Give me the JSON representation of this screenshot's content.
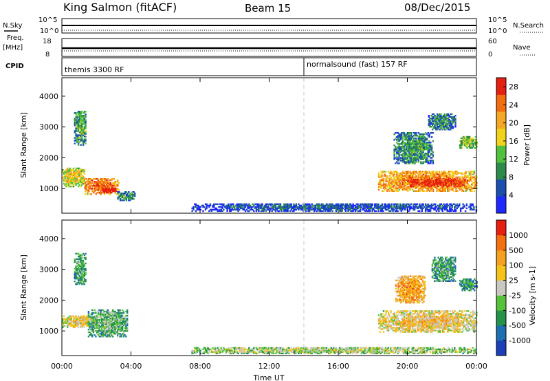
{
  "header": {
    "station": "King Salmon (fitACF)",
    "beam": "Beam 15",
    "date": "08/Dec/2015"
  },
  "top_panels": {
    "nsky_label": "N.Sky",
    "nsky_ticks": [
      "10^5",
      "10^0"
    ],
    "nsearch_label": "N.Search",
    "freq_label": "Freq.",
    "freq_unit": "[MHz]",
    "freq_ticks": [
      "18",
      "8"
    ],
    "nave_label": "Nave",
    "nave_ticks": [
      "60",
      "0"
    ],
    "cpid_label": "CPID",
    "cpid_segments": [
      "themis 3300 RF",
      "normalsound (fast) 157 RF"
    ]
  },
  "chart_data": [
    {
      "type": "heatmap",
      "title": "",
      "xlabel": "Time UT",
      "ylabel": "Slant Range [km]",
      "x_ticks": [
        "00:00",
        "04:00",
        "08:00",
        "12:00",
        "16:00",
        "20:00",
        "00:00"
      ],
      "y_ticks": [
        1000,
        2000,
        3000,
        4000
      ],
      "ylim": [
        200,
        4600
      ],
      "colorbar": {
        "label": "Power [dB]",
        "ticks": [
          4,
          8,
          12,
          16,
          20,
          24,
          28
        ],
        "range": [
          0,
          30
        ],
        "colors": [
          "#1e28ff",
          "#1a4fb0",
          "#2e8a4a",
          "#52c23c",
          "#f2d21a",
          "#f5a623",
          "#f36d10",
          "#e52010"
        ]
      },
      "blobs": [
        {
          "t": [
            0.0,
            1.3
          ],
          "r": [
            1050,
            1650
          ],
          "level": 0.45
        },
        {
          "t": [
            1.3,
            3.3
          ],
          "r": [
            800,
            1300
          ],
          "level": 0.65
        },
        {
          "t": [
            2.2,
            3.2
          ],
          "r": [
            850,
            1000
          ],
          "level": 0.9
        },
        {
          "t": [
            0.7,
            1.4
          ],
          "r": [
            2400,
            3500
          ],
          "level": 0.25
        },
        {
          "t": [
            3.2,
            4.2
          ],
          "r": [
            600,
            900
          ],
          "level": 0.2
        },
        {
          "t": [
            7.5,
            24.0
          ],
          "r": [
            250,
            500
          ],
          "level": 0.05
        },
        {
          "t": [
            18.3,
            24.0
          ],
          "r": [
            900,
            1550
          ],
          "level": 0.6
        },
        {
          "t": [
            20.0,
            23.5
          ],
          "r": [
            1050,
            1300
          ],
          "level": 0.85
        },
        {
          "t": [
            19.2,
            21.5
          ],
          "r": [
            1800,
            2800
          ],
          "level": 0.2
        },
        {
          "t": [
            21.2,
            22.8
          ],
          "r": [
            2900,
            3400
          ],
          "level": 0.15
        },
        {
          "t": [
            23.0,
            24.0
          ],
          "r": [
            2300,
            2700
          ],
          "level": 0.35
        }
      ]
    },
    {
      "type": "heatmap",
      "title": "",
      "xlabel": "Time UT",
      "ylabel": "Slant Range [km]",
      "x_ticks": [
        "00:00",
        "04:00",
        "08:00",
        "12:00",
        "16:00",
        "20:00",
        "00:00"
      ],
      "y_ticks": [
        1000,
        2000,
        3000,
        4000
      ],
      "ylim": [
        200,
        4600
      ],
      "colorbar": {
        "label": "Velocity [m s-1]",
        "ticks": [
          1000,
          500,
          100,
          25,
          -25,
          -100,
          -500,
          -1000
        ],
        "colors": [
          "#1c3fb8",
          "#1d6fb0",
          "#23924a",
          "#56c23a",
          "#c8c8c0",
          "#f5c21a",
          "#f5a020",
          "#f37010",
          "#e52010"
        ]
      },
      "blobs": [
        {
          "t": [
            0.0,
            2.0
          ],
          "r": [
            1100,
            1500
          ],
          "level": 0.45
        },
        {
          "t": [
            1.5,
            3.8
          ],
          "r": [
            800,
            1700
          ],
          "level": 0.25
        },
        {
          "t": [
            0.7,
            1.4
          ],
          "r": [
            2500,
            3500
          ],
          "level": 0.2
        },
        {
          "t": [
            7.5,
            24.0
          ],
          "r": [
            250,
            450
          ],
          "level": 0.35
        },
        {
          "t": [
            18.3,
            24.0
          ],
          "r": [
            950,
            1650
          ],
          "level": 0.48
        },
        {
          "t": [
            19.3,
            21.0
          ],
          "r": [
            1900,
            2800
          ],
          "level": 0.6
        },
        {
          "t": [
            21.4,
            22.8
          ],
          "r": [
            2600,
            3400
          ],
          "level": 0.2
        },
        {
          "t": [
            23.0,
            24.0
          ],
          "r": [
            2300,
            2700
          ],
          "level": 0.15
        }
      ]
    }
  ]
}
